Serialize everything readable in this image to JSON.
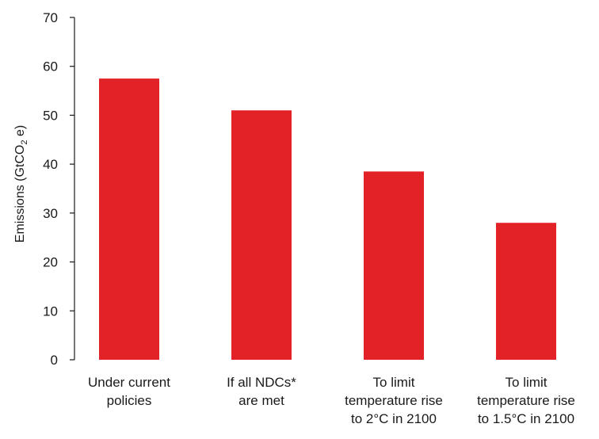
{
  "chart_data": {
    "type": "bar",
    "categories": [
      [
        "Under current",
        "policies"
      ],
      [
        "If all NDCs*",
        "are met"
      ],
      [
        "To limit",
        "temperature rise",
        "to 2°C in 2100"
      ],
      [
        "To limit",
        "temperature rise",
        "to 1.5°C in 2100"
      ]
    ],
    "values": [
      57.5,
      51,
      38.5,
      28
    ],
    "ylabel": "Emissions (GtCO₂e)",
    "ylabel_parts": {
      "pre": "Emissions (GtCO",
      "sub": "2",
      "post": " e)"
    },
    "ylim": [
      0,
      70
    ],
    "yticks": [
      0,
      10,
      20,
      30,
      40,
      50,
      60,
      70
    ],
    "bar_color": "#e32227",
    "axis_color": "#1a1a1a",
    "grid": false
  }
}
